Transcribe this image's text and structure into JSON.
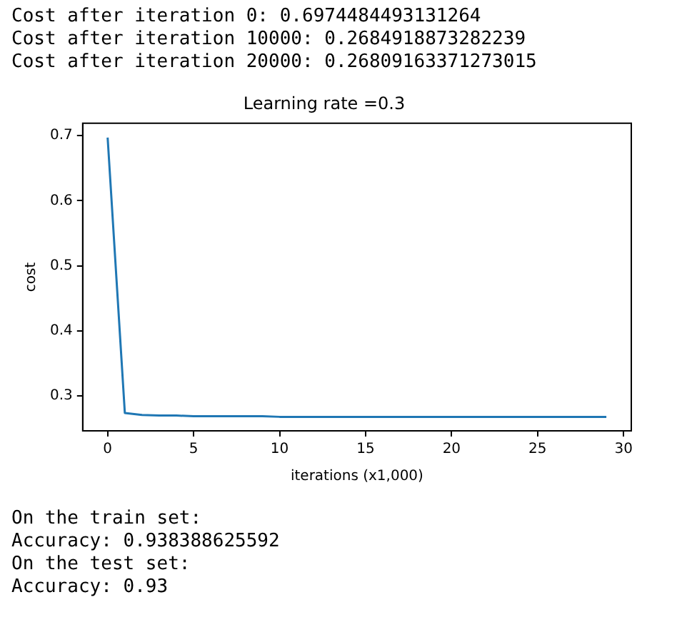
{
  "chart_data": {
    "type": "line",
    "title": "Learning rate =0.3",
    "xlabel": "iterations (x1,000)",
    "ylabel": "cost",
    "x": [
      0,
      1,
      2,
      3,
      4,
      5,
      6,
      7,
      8,
      9,
      10,
      11,
      12,
      13,
      14,
      15,
      16,
      17,
      18,
      19,
      20,
      21,
      22,
      23,
      24,
      25,
      26,
      27,
      28,
      29
    ],
    "series": [
      {
        "color": "#1f77b4",
        "values": [
          0.697,
          0.274,
          0.271,
          0.27,
          0.27,
          0.269,
          0.269,
          0.269,
          0.269,
          0.269,
          0.268,
          0.268,
          0.268,
          0.268,
          0.268,
          0.268,
          0.268,
          0.268,
          0.268,
          0.268,
          0.268,
          0.268,
          0.268,
          0.268,
          0.268,
          0.268,
          0.268,
          0.268,
          0.268,
          0.268
        ]
      }
    ],
    "xlim": [
      -1.45,
      30.45
    ],
    "ylim": [
      0.2465,
      0.7189
    ],
    "xticks": [
      0,
      5,
      10,
      15,
      20,
      25,
      30
    ],
    "yticks": [
      0.3,
      0.4,
      0.5,
      0.6,
      0.7
    ],
    "grid": false,
    "legend": false,
    "marker": "none",
    "line_style": "solid",
    "annotations": [
      "Cost after iteration 0: 0.6974484493131264",
      "Cost after iteration 10000: 0.2684918873282239",
      "Cost after iteration 20000: 0.26809163371273015",
      "On the train set:",
      "Accuracy: 0.938388625592",
      "On the test set:",
      "Accuracy: 0.93"
    ]
  }
}
